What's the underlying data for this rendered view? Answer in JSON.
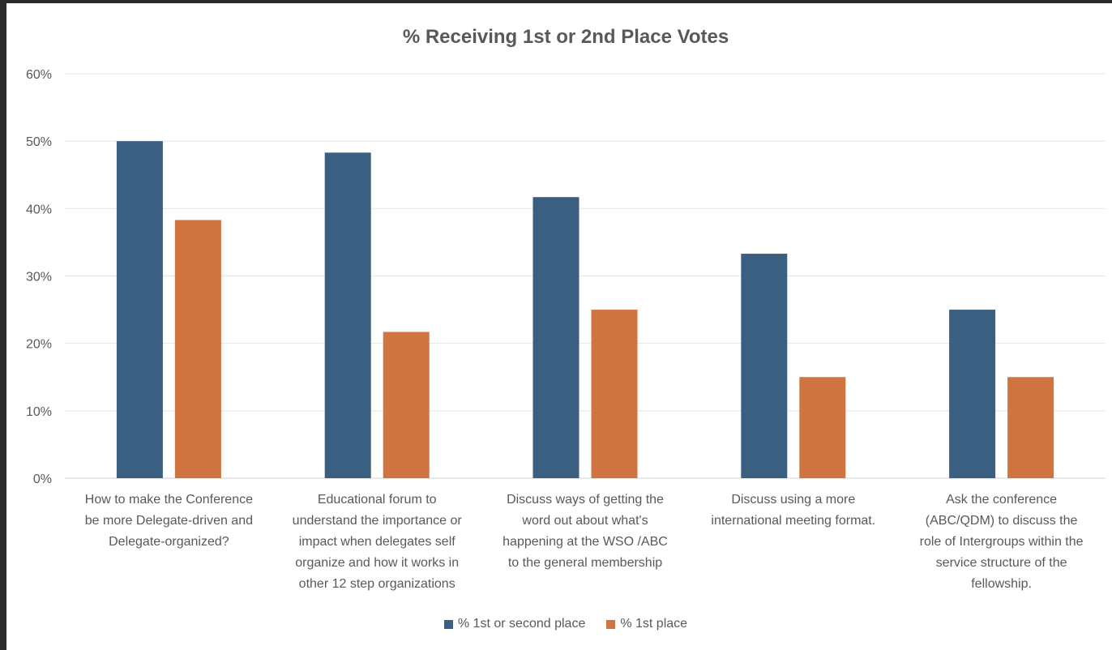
{
  "chart_data": {
    "type": "bar",
    "title": "% Receiving 1st or 2nd Place Votes",
    "xlabel": "",
    "ylabel": "",
    "ylim": [
      0,
      60
    ],
    "yticks": [
      "0%",
      "10%",
      "20%",
      "30%",
      "40%",
      "50%",
      "60%"
    ],
    "grid": true,
    "legend_position": "bottom",
    "categories": [
      "How to make the Conference be more Delegate-driven and Delegate-organized?",
      "Educational forum to understand the importance or impact when delegates self organize and how it works in other 12 step organizations",
      "Discuss ways of getting the word out about what's happening at the WSO /ABC to the general membership",
      "Discuss using a more international meeting format.",
      "Ask the conference (ABC/QDM) to discuss the role of Intergroups within the service structure of the fellowship."
    ],
    "category_lines": [
      [
        "How to make the Conference",
        "be more Delegate-driven and",
        "Delegate-organized?"
      ],
      [
        "Educational forum to",
        "understand the importance or",
        "impact when delegates self",
        "organize and how it works in",
        "other 12 step organizations"
      ],
      [
        "Discuss ways of getting the",
        "word out about what's",
        "happening at the WSO /ABC",
        "to the general membership"
      ],
      [
        "Discuss using a more",
        "international meeting format."
      ],
      [
        "Ask the conference",
        "(ABC/QDM) to discuss the",
        "role of Intergroups within the",
        "service structure of the",
        "fellowship."
      ]
    ],
    "series": [
      {
        "name": "% 1st or second place",
        "color": "#3b5f80",
        "values": [
          50,
          48.3,
          41.7,
          33.3,
          25
        ]
      },
      {
        "name": "% 1st place",
        "color": "#d07440",
        "values": [
          38.3,
          21.7,
          25,
          15,
          15
        ]
      }
    ]
  }
}
